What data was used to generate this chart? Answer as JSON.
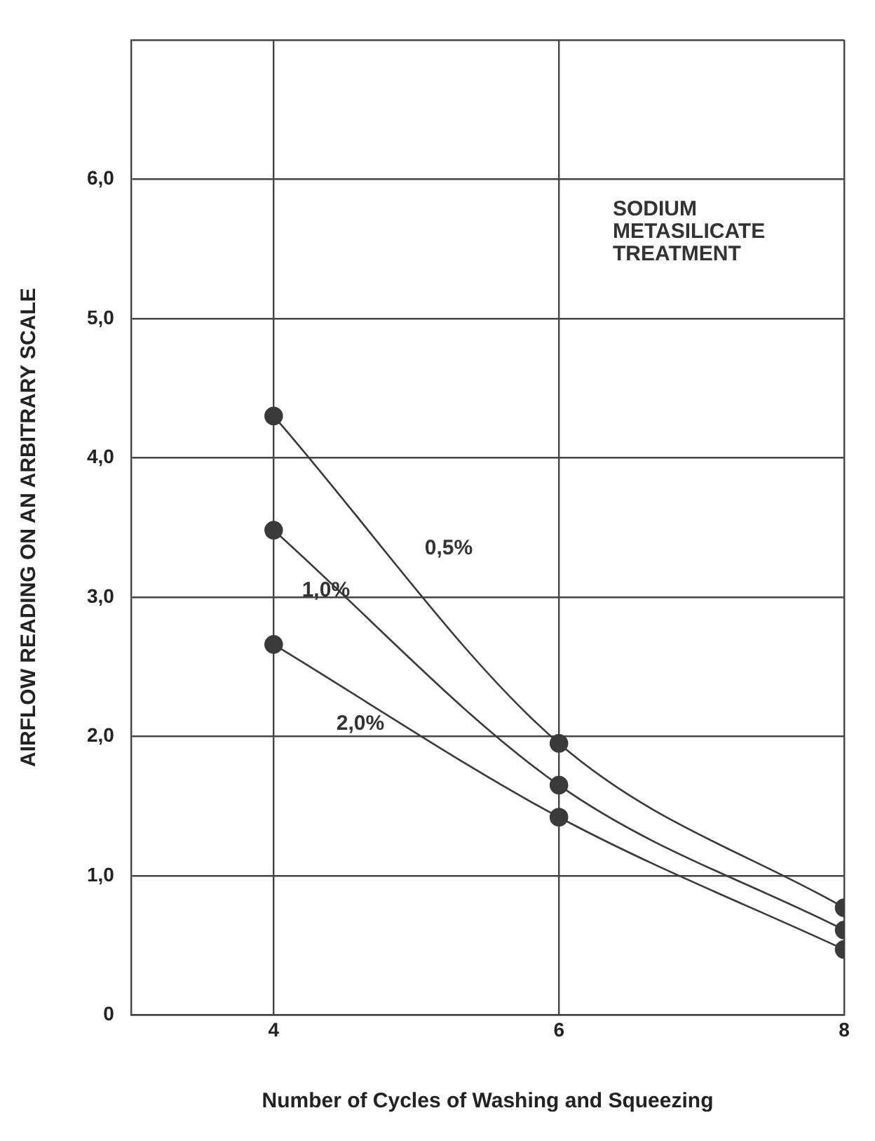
{
  "chart_data": {
    "type": "line",
    "xlabel": "Number of Cycles of Washing and Squeezing",
    "ylabel": "AIRFLOW READING ON AN ARBITRARY SCALE",
    "x": [
      4,
      6,
      8
    ],
    "series": [
      {
        "name": "0,5%",
        "color": "#3a3a3a",
        "values": [
          4.3,
          1.95,
          0.77
        ]
      },
      {
        "name": "1,0%",
        "color": "#3a3a3a",
        "values": [
          3.48,
          1.65,
          0.61
        ]
      },
      {
        "name": "2,0%",
        "color": "#3a3a3a",
        "values": [
          2.66,
          1.42,
          0.47
        ]
      }
    ],
    "xlim": [
      3,
      8
    ],
    "xticks": [
      4,
      6,
      8
    ],
    "ylim": [
      0,
      7
    ],
    "yticks": [
      {
        "value": 0,
        "label": "0"
      },
      {
        "value": 1,
        "label": "1,0"
      },
      {
        "value": 2,
        "label": "2,0"
      },
      {
        "value": 3,
        "label": "3,0"
      },
      {
        "value": 4,
        "label": "4,0"
      },
      {
        "value": 5,
        "label": "5,0"
      },
      {
        "value": 6,
        "label": "6,0"
      },
      {
        "value": 7,
        "label": null
      }
    ],
    "annotations": [
      "SODIUM\nMETASILICATE\nTREATMENT"
    ],
    "grid": true,
    "legend": false,
    "marker": "circle",
    "line_style": "solid"
  }
}
